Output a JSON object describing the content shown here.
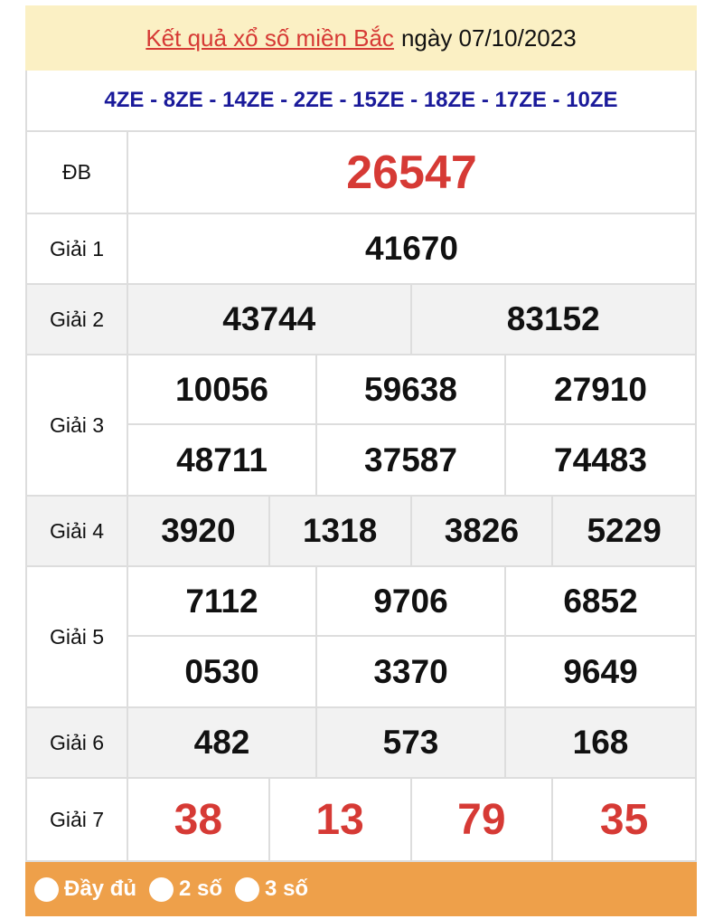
{
  "header": {
    "title_link": "Kết quả xổ số miền Bắc",
    "date_text": "ngày 07/10/2023"
  },
  "codes": "4ZE - 8ZE - 14ZE - 2ZE - 15ZE - 18ZE - 17ZE - 10ZE",
  "prizes": [
    {
      "label": "ĐB",
      "numbers": [
        "26547"
      ]
    },
    {
      "label": "Giải 1",
      "numbers": [
        "41670"
      ]
    },
    {
      "label": "Giải 2",
      "numbers": [
        "43744",
        "83152"
      ]
    },
    {
      "label": "Giải 3",
      "numbers": [
        "10056",
        "59638",
        "27910",
        "48711",
        "37587",
        "74483"
      ]
    },
    {
      "label": "Giải 4",
      "numbers": [
        "3920",
        "1318",
        "3826",
        "5229"
      ]
    },
    {
      "label": "Giải 5",
      "numbers": [
        "7112",
        "9706",
        "6852",
        "0530",
        "3370",
        "9649"
      ]
    },
    {
      "label": "Giải 6",
      "numbers": [
        "482",
        "573",
        "168"
      ]
    },
    {
      "label": "Giải 7",
      "numbers": [
        "38",
        "13",
        "79",
        "35"
      ]
    }
  ],
  "options": [
    "Đầy đủ",
    "2 số",
    "3 số"
  ],
  "colors": {
    "accent_red": "#d63a35",
    "code_blue": "#1a1a9a",
    "header_bg": "#fbf0c4",
    "bar_orange": "#eea04a"
  }
}
